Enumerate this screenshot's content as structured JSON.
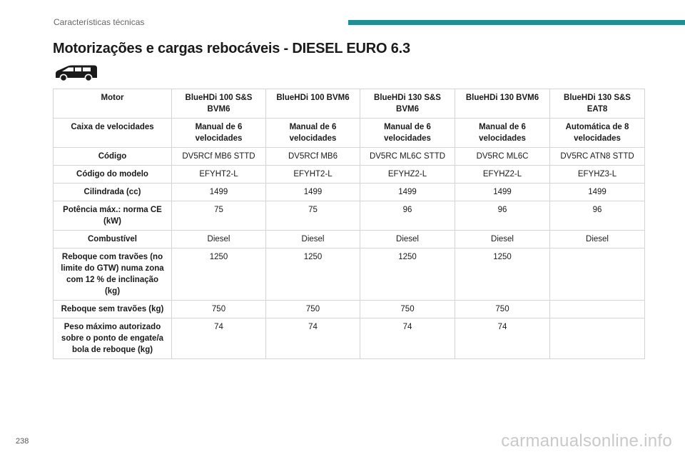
{
  "header": {
    "section": "Características técnicas",
    "accent_color": "#1f8f95"
  },
  "title": "Motorizações e cargas rebocáveis - DIESEL EURO 6.3",
  "vehicle_icon": "van-icon",
  "table": {
    "headers": [
      "Motor",
      "BlueHDi 100 S&S BVM6",
      "BlueHDi 100 BVM6",
      "BlueHDi 130 S&S BVM6",
      "BlueHDi 130 BVM6",
      "BlueHDi 130 S&S EAT8"
    ],
    "rows": [
      {
        "label": "Caixa de velocidades",
        "values": [
          "Manual de 6 velocidades",
          "Manual de 6 velocidades",
          "Manual de 6 velocidades",
          "Manual de 6 velocidades",
          "Automática de 8 velocidades"
        ]
      },
      {
        "label": "Código",
        "values": [
          "DV5RCf MB6 STTD",
          "DV5RCf MB6",
          "DV5RC ML6C STTD",
          "DV5RC ML6C",
          "DV5RC ATN8 STTD"
        ]
      },
      {
        "label": "Código do modelo",
        "values": [
          "EFYHT2-L",
          "EFYHT2-L",
          "EFYHZ2-L",
          "EFYHZ2-L",
          "EFYHZ3-L"
        ]
      },
      {
        "label": "Cilindrada (cc)",
        "values": [
          "1499",
          "1499",
          "1499",
          "1499",
          "1499"
        ]
      },
      {
        "label": "Potência máx.: norma CE (kW)",
        "values": [
          "75",
          "75",
          "96",
          "96",
          "96"
        ]
      },
      {
        "label": "Combustível",
        "values": [
          "Diesel",
          "Diesel",
          "Diesel",
          "Diesel",
          "Diesel"
        ]
      },
      {
        "label": "Reboque com travões (no limite do GTW) numa zona com 12 % de inclinação (kg)",
        "values": [
          "1250",
          "1250",
          "1250",
          "1250",
          ""
        ]
      },
      {
        "label": "Reboque sem travões (kg)",
        "values": [
          "750",
          "750",
          "750",
          "750",
          ""
        ]
      },
      {
        "label": "Peso máximo autorizado sobre o ponto de engate/a bola de reboque (kg)",
        "values": [
          "74",
          "74",
          "74",
          "74",
          ""
        ]
      }
    ]
  },
  "page_number": "238",
  "watermark": "carmanualsonline.info"
}
